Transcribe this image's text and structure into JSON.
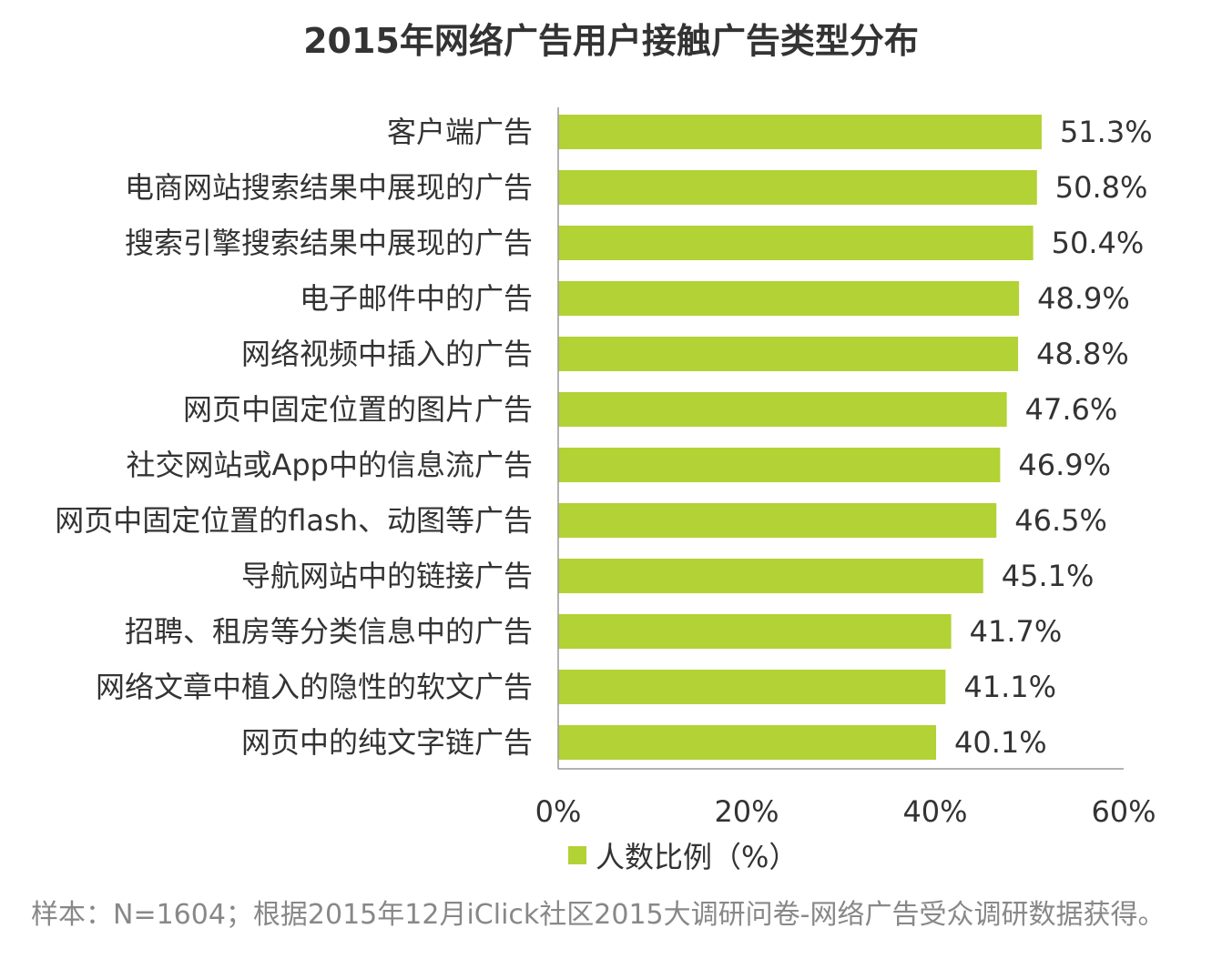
{
  "chart_data": {
    "type": "bar",
    "orientation": "horizontal",
    "title": "2015年网络广告用户接触广告类型分布",
    "categories": [
      "客户端广告",
      "电商网站搜索结果中展现的广告",
      "搜索引擎搜索结果中展现的广告",
      "电子邮件中的广告",
      "网络视频中插入的广告",
      "网页中固定位置的图片广告",
      "社交网站或App中的信息流广告",
      "网页中固定位置的flash、动图等广告",
      "导航网站中的链接广告",
      "招聘、租房等分类信息中的广告",
      "网络文章中植入的隐性的软文广告",
      "网页中的纯文字链广告"
    ],
    "series": [
      {
        "name": "人数比例（%）",
        "values": [
          51.3,
          50.8,
          50.4,
          48.9,
          48.8,
          47.6,
          46.9,
          46.5,
          45.1,
          41.7,
          41.1,
          40.1
        ],
        "value_labels": [
          "51.3%",
          "50.8%",
          "50.4%",
          "48.9%",
          "48.8%",
          "47.6%",
          "46.9%",
          "46.5%",
          "45.1%",
          "41.7%",
          "41.1%",
          "40.1%"
        ]
      }
    ],
    "xlim": [
      0,
      60
    ],
    "xticks": [
      0,
      20,
      40,
      60
    ],
    "xtick_labels": [
      "0%",
      "20%",
      "40%",
      "60%"
    ],
    "xlabel": "",
    "ylabel": "",
    "grid": false,
    "legend_position": "bottom",
    "bar_color": "#b2d235"
  },
  "footnote": "样本：N=1604；根据2015年12月iClick社区2015大调研问卷-网络广告受众调研数据获得。"
}
